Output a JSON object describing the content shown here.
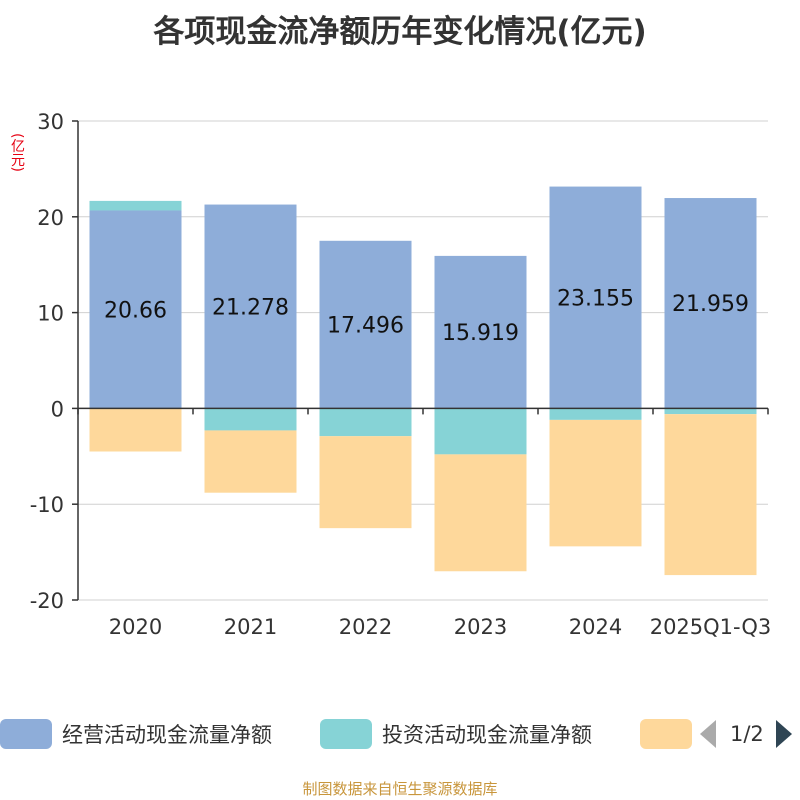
{
  "title": "各项现金流净额历年变化情况(亿元)",
  "unit_label": "(亿元)",
  "source": "制图数据来自恒生聚源数据库",
  "legend": {
    "items": [
      {
        "label": "经营活动现金流量净额",
        "color": "#8eadd9"
      },
      {
        "label": "投资活动现金流量净额",
        "color": "#86d3d6"
      },
      {
        "label": "",
        "color": "#fed89b"
      }
    ],
    "page_text": "1/2"
  },
  "chart_data": {
    "type": "bar",
    "stacked": true,
    "categories": [
      "2020",
      "2021",
      "2022",
      "2023",
      "2024",
      "2025Q1-Q3"
    ],
    "series": [
      {
        "name": "经营活动现金流量净额",
        "color": "#8eadd9",
        "values": [
          20.66,
          21.278,
          17.496,
          15.919,
          23.155,
          21.959
        ],
        "labels": [
          "20.66",
          "21.278",
          "17.496",
          "15.919",
          "23.155",
          "21.959"
        ]
      },
      {
        "name": "投资活动现金流量净额",
        "color": "#86d3d6",
        "values": [
          1.0,
          -2.3,
          -2.9,
          -4.8,
          -1.2,
          -0.6
        ]
      },
      {
        "name": "",
        "color": "#fed89b",
        "values": [
          -4.5,
          -6.5,
          -9.6,
          -12.2,
          -13.2,
          -16.8
        ]
      }
    ],
    "ylim": [
      -20,
      30
    ],
    "yticks": [
      30,
      20,
      10,
      0,
      -10,
      -20
    ],
    "ylabel": "(亿元)",
    "grid": true
  }
}
